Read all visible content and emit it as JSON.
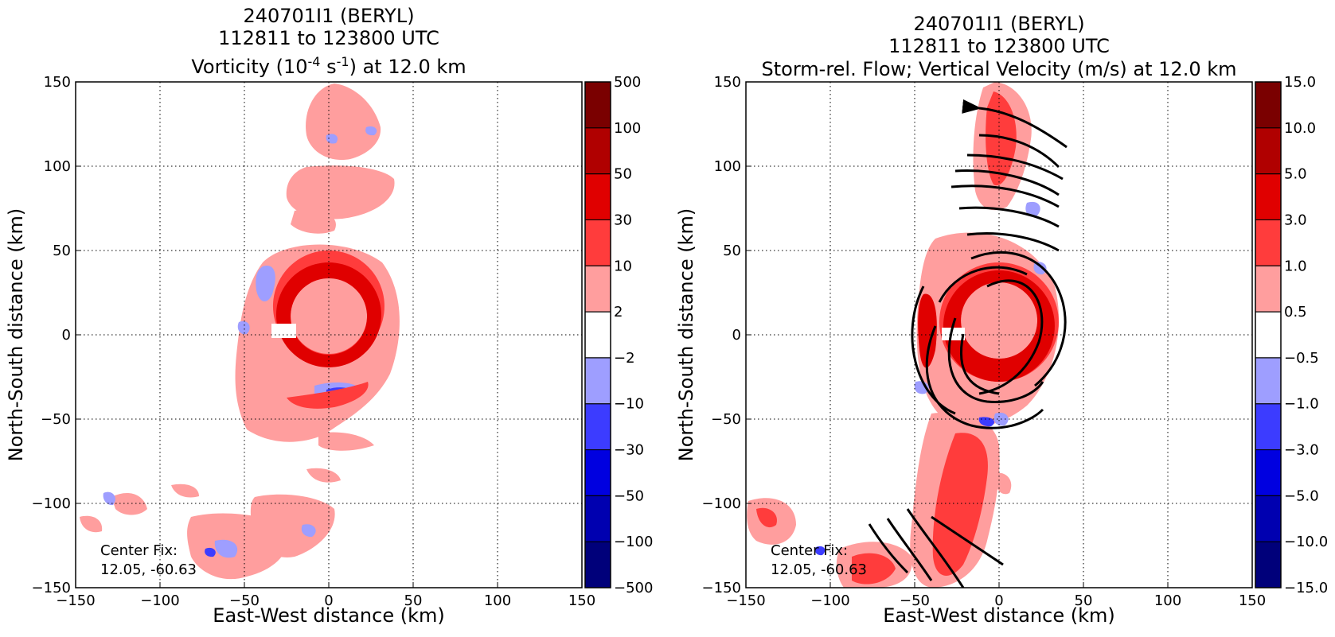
{
  "panels": [
    {
      "title_line1": "240701I1 (BERYL)",
      "title_line2": "112811 to 123800 UTC",
      "title_pre": "Vorticity (10",
      "title_sup1": "-4",
      "title_mid": " s",
      "title_sup2": "-1",
      "title_post": ") at 12.0 km",
      "xlabel": "East-West distance (km)",
      "ylabel": "North-South distance (km)",
      "center_fix_label": "Center Fix:",
      "center_fix_value": "12.05, -60.63",
      "x_ticks": [
        "−150",
        "−100",
        "−50",
        "0",
        "50",
        "100",
        "150"
      ],
      "y_ticks": [
        "150",
        "100",
        "50",
        "0",
        "−50",
        "−100",
        "−150"
      ],
      "colorbar_labels": [
        "500",
        "100",
        "50",
        "30",
        "10",
        "2",
        "−2",
        "−10",
        "−30",
        "−50",
        "−100",
        "−500"
      ]
    },
    {
      "title_line1": "240701I1 (BERYL)",
      "title_line2": "112811 to 123800 UTC",
      "title_full": "Storm-rel. Flow; Vertical Velocity (m/s) at 12.0 km",
      "xlabel": "East-West distance (km)",
      "ylabel": "North-South distance (km)",
      "center_fix_label": "Center Fix:",
      "center_fix_value": "12.05, -60.63",
      "x_ticks": [
        "−150",
        "−100",
        "−50",
        "0",
        "50",
        "100",
        "150"
      ],
      "y_ticks": [
        "150",
        "100",
        "50",
        "0",
        "−50",
        "−100",
        "−150"
      ],
      "colorbar_labels": [
        "15.0",
        "10.0",
        "5.0",
        "3.0",
        "1.0",
        "0.5",
        "−0.5",
        "−1.0",
        "−3.0",
        "−5.0",
        "−10.0",
        "−15.0"
      ]
    }
  ],
  "colorbar_colors": [
    "#7a0000",
    "#b00000",
    "#e00000",
    "#ff3c3c",
    "#ff9e9e",
    "#ffffff",
    "#9e9eff",
    "#3c3cff",
    "#0000e0",
    "#0000b0",
    "#00007a"
  ],
  "chart_data": [
    {
      "type": "heatmap",
      "title": "240701I1 (BERYL) 112811 to 123800 UTC Vorticity (10^-4 s^-1) at 12.0 km",
      "xlabel": "East-West distance (km)",
      "ylabel": "North-South distance (km)",
      "xlim": [
        -150,
        150
      ],
      "ylim": [
        -150,
        150
      ],
      "grid": true,
      "colorbar_levels": [
        -500,
        -100,
        -50,
        -30,
        -10,
        -2,
        2,
        10,
        30,
        50,
        100,
        500
      ],
      "center_fix": [
        12.05,
        -60.63
      ],
      "features": [
        {
          "kind": "ring",
          "center": [
            0,
            0
          ],
          "inner_radius": 26,
          "outer_radius": 45,
          "level": 30
        },
        {
          "kind": "band",
          "x_range": [
            -45,
            45
          ],
          "y_range": [
            -80,
            150
          ],
          "level": 2
        }
      ]
    },
    {
      "type": "heatmap",
      "title": "240701I1 (BERYL) 112811 to 123800 UTC Storm-rel. Flow; Vertical Velocity (m/s) at 12.0 km",
      "xlabel": "East-West distance (km)",
      "ylabel": "North-South distance (km)",
      "xlim": [
        -150,
        150
      ],
      "ylim": [
        -150,
        150
      ],
      "grid": true,
      "colorbar_levels": [
        -15.0,
        -10.0,
        -5.0,
        -3.0,
        -1.0,
        -0.5,
        0.5,
        1.0,
        3.0,
        5.0,
        10.0,
        15.0
      ],
      "center_fix": [
        12.05,
        -60.63
      ],
      "overlay": "storm-relative streamlines (cyclonic circulation)",
      "features": [
        {
          "kind": "ring",
          "center": [
            0,
            0
          ],
          "inner_radius": 25,
          "outer_radius": 48,
          "level": 3.0
        },
        {
          "kind": "band",
          "x_range": [
            -30,
            40
          ],
          "y_range": [
            -150,
            150
          ],
          "level": 1.0
        }
      ]
    }
  ]
}
